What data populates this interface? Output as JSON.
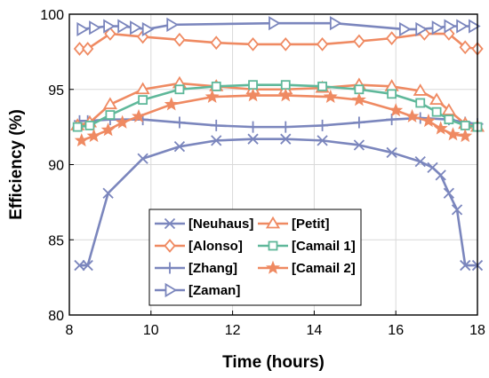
{
  "chart_data": {
    "type": "line",
    "xlabel": "Time (hours)",
    "ylabel": "Efficiency (%)",
    "xlim": [
      8,
      18
    ],
    "ylim": [
      80,
      100
    ],
    "xticks": [
      8,
      10,
      12,
      14,
      16,
      18
    ],
    "yticks": [
      80,
      85,
      90,
      95,
      100
    ],
    "grid": true,
    "legend_position": "bottom-center",
    "series": [
      {
        "name": "[Neuhaus]",
        "color": "#7b86bd",
        "marker": "x",
        "x": [
          8.25,
          8.45,
          8.95,
          9.8,
          10.7,
          11.6,
          12.5,
          13.3,
          14.2,
          15.1,
          15.9,
          16.6,
          16.9,
          17.1,
          17.3,
          17.5,
          17.7,
          18.0
        ],
        "y": [
          83.3,
          83.3,
          88.1,
          90.4,
          91.2,
          91.6,
          91.7,
          91.7,
          91.6,
          91.3,
          90.8,
          90.2,
          89.8,
          89.3,
          88.1,
          87.0,
          83.3,
          83.3
        ]
      },
      {
        "name": "[Alonso]",
        "color": "#ef8a62",
        "marker": "diamond",
        "x": [
          8.25,
          8.45,
          9.0,
          9.8,
          10.7,
          11.6,
          12.5,
          13.3,
          14.2,
          15.1,
          15.9,
          16.7,
          17.3,
          17.7,
          18.0
        ],
        "y": [
          97.7,
          97.7,
          98.7,
          98.5,
          98.3,
          98.1,
          98.0,
          98.0,
          98.0,
          98.2,
          98.4,
          98.7,
          98.7,
          97.8,
          97.7
        ]
      },
      {
        "name": "[Zhang]",
        "color": "#7b86bd",
        "marker": "plus",
        "x": [
          8.25,
          8.45,
          9.0,
          9.8,
          10.7,
          11.6,
          12.5,
          13.3,
          14.2,
          15.1,
          15.9,
          16.6,
          17.3,
          17.7,
          18.0
        ],
        "y": [
          92.9,
          92.9,
          93.0,
          93.0,
          92.8,
          92.6,
          92.5,
          92.5,
          92.6,
          92.8,
          93.0,
          93.1,
          93.0,
          92.8,
          92.7
        ]
      },
      {
        "name": "[Zaman]",
        "color": "#7b86bd",
        "marker": "triangle-right",
        "x": [
          8.3,
          8.6,
          8.95,
          9.3,
          9.6,
          9.9,
          10.5,
          13.0,
          14.5,
          16.2,
          16.6,
          17.0,
          17.3,
          17.6,
          17.9
        ],
        "y": [
          99.0,
          99.1,
          99.2,
          99.2,
          99.1,
          99.0,
          99.3,
          99.4,
          99.4,
          99.0,
          99.0,
          99.1,
          99.2,
          99.2,
          99.2
        ]
      },
      {
        "name": "[Petit]",
        "color": "#ef8a62",
        "marker": "triangle-up",
        "x": [
          8.2,
          8.5,
          9.0,
          9.8,
          10.7,
          11.6,
          12.5,
          13.3,
          14.2,
          15.1,
          15.9,
          16.6,
          17.0,
          17.3,
          17.7,
          18.0
        ],
        "y": [
          92.6,
          92.8,
          94.0,
          95.0,
          95.4,
          95.2,
          95.0,
          95.0,
          95.1,
          95.3,
          95.2,
          94.9,
          94.3,
          93.6,
          92.7,
          92.5
        ]
      },
      {
        "name": "[Camail 1]",
        "color": "#5fb89a",
        "marker": "square",
        "x": [
          8.2,
          8.5,
          9.0,
          9.8,
          10.7,
          11.6,
          12.5,
          13.3,
          14.2,
          15.1,
          15.9,
          16.6,
          17.0,
          17.3,
          17.7,
          18.0
        ],
        "y": [
          92.5,
          92.6,
          93.3,
          94.3,
          95.0,
          95.2,
          95.3,
          95.3,
          95.2,
          95.0,
          94.7,
          94.1,
          93.5,
          93.0,
          92.6,
          92.5
        ]
      },
      {
        "name": "[Camail 2]",
        "color": "#ef8a62",
        "marker": "star",
        "x": [
          8.3,
          8.6,
          8.95,
          9.3,
          9.7,
          10.5,
          11.5,
          12.5,
          13.3,
          14.4,
          15.1,
          16.0,
          16.4,
          16.8,
          17.1,
          17.4,
          17.7
        ],
        "y": [
          91.6,
          91.9,
          92.3,
          92.8,
          93.2,
          94.0,
          94.5,
          94.6,
          94.6,
          94.5,
          94.3,
          93.6,
          93.2,
          92.9,
          92.4,
          92.0,
          91.9
        ]
      }
    ]
  }
}
